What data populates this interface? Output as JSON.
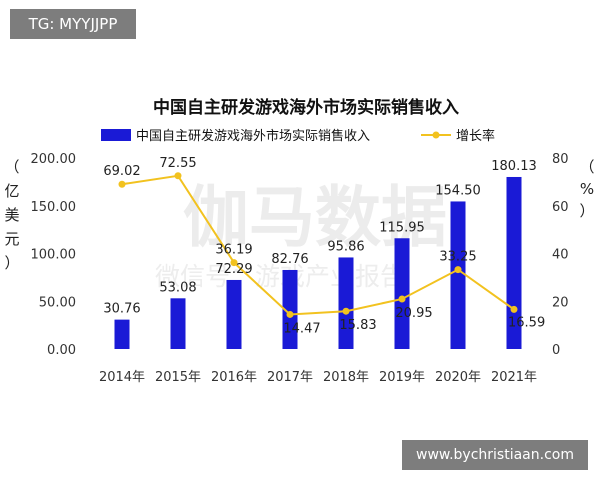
{
  "tag": "TG: MYYJJPP",
  "watermark_url": "www.bychristiaan.com",
  "chart_data": {
    "type": "bar",
    "title": "中国自主研发游戏海外市场实际销售收入",
    "categories": [
      "2014年",
      "2015年",
      "2016年",
      "2017年",
      "2018年",
      "2019年",
      "2020年",
      "2021年"
    ],
    "series": [
      {
        "name": "中国自主研发游戏海外市场实际销售收入",
        "type": "bar",
        "axis": "left",
        "values": [
          30.76,
          53.08,
          72.29,
          82.76,
          95.86,
          115.95,
          154.5,
          180.13
        ],
        "labels": [
          "30.76",
          "53.08",
          "72.29",
          "82.76",
          "95.86",
          "115.95",
          "154.50",
          "180.13"
        ],
        "color": "#1a1ad6"
      },
      {
        "name": "增长率",
        "type": "line",
        "axis": "right",
        "values": [
          69.02,
          72.55,
          36.19,
          14.47,
          15.83,
          20.95,
          33.25,
          16.59
        ],
        "labels": [
          "69.02",
          "72.55",
          "36.19",
          "14.47",
          "15.83",
          "20.95",
          "33.25",
          "16.59"
        ],
        "color": "#f2c21f"
      }
    ],
    "ylabel_left": [
      "（",
      "亿",
      "美",
      "元",
      "）"
    ],
    "ylabel_right": [
      "（",
      "%",
      "）"
    ],
    "ylim_left": [
      0,
      200
    ],
    "yticks_left": [
      "0.00",
      "50.00",
      "100.00",
      "150.00",
      "200.00"
    ],
    "ylim_right": [
      0,
      80
    ],
    "yticks_right": [
      "0",
      "20",
      "40",
      "60",
      "80"
    ],
    "grid": false,
    "legend_position": "top"
  },
  "chart_watermark": {
    "brand": "伽马数据",
    "subtitle": "微信号：游戏产业报告"
  }
}
